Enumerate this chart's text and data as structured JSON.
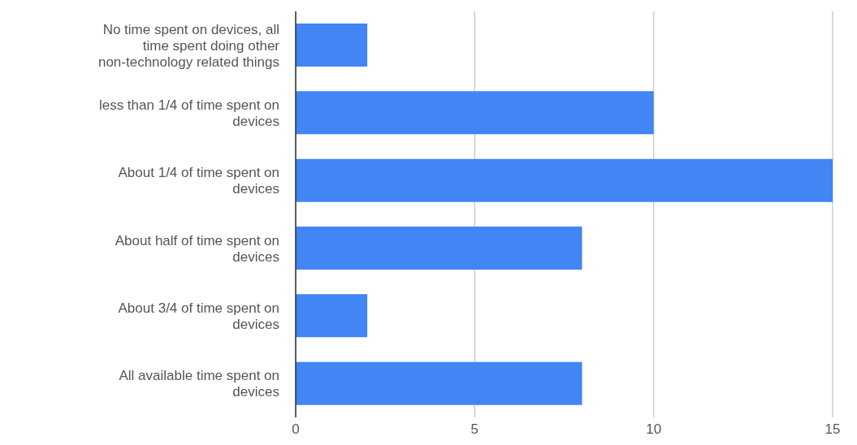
{
  "chart_data": {
    "type": "bar",
    "orientation": "horizontal",
    "categories": [
      "No time spent on devices, all time spent doing other non-technology related things",
      "less than 1/4 of time spent on devices",
      "About 1/4 of time spent on devices",
      "About half of time spent on devices",
      "About 3/4 of time spent on devices",
      "All available time spent on devices"
    ],
    "values": [
      2,
      10,
      15,
      8,
      2,
      8
    ],
    "color": "#4285f4",
    "xlim": [
      0,
      15
    ],
    "xticks": [
      0,
      5,
      10,
      15
    ],
    "grid": "x",
    "legend": false
  }
}
